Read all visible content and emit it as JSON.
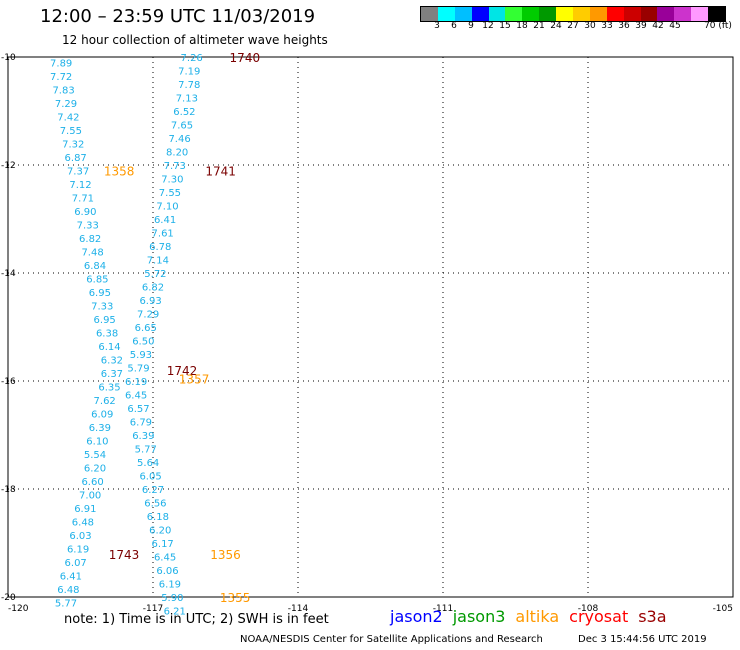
{
  "header": {
    "title": "12:00 – 23:59 UTC 11/03/2019",
    "subtitle": "12 hour collection of altimeter wave heights"
  },
  "colorbar": {
    "colors": [
      "#808080",
      "#00ffff",
      "#00bfff",
      "#0000ff",
      "#00e5e5",
      "#33ff33",
      "#00cc00",
      "#009900",
      "#ffff00",
      "#ffcc00",
      "#ff9900",
      "#ff0000",
      "#cc0000",
      "#990000",
      "#990099",
      "#cc33cc",
      "#ff99ff",
      "#000000"
    ],
    "labels": [
      "3",
      "6",
      "9",
      "12",
      "15",
      "18",
      "21",
      "24",
      "27",
      "30",
      "33",
      "36",
      "39",
      "42",
      "45",
      "70 (ft)"
    ]
  },
  "axes": {
    "lat_ticks": [
      "-10",
      "-12",
      "-14",
      "-16",
      "-18",
      "-20"
    ],
    "lon_ticks": [
      "-120",
      "-117",
      "-114",
      "-111",
      "-108",
      "-105"
    ],
    "lat_range": [
      -20,
      -10
    ],
    "lon_range": [
      -120,
      -105
    ]
  },
  "tracks": [
    {
      "satellite": "jason2",
      "color": "#1db0e8",
      "points": [
        {
          "lat": -10.1,
          "lon": -118.9,
          "v": "7.89"
        },
        {
          "lat": -10.35,
          "lon": -118.9,
          "v": "7.72"
        },
        {
          "lat": -10.6,
          "lon": -118.85,
          "v": "7.83"
        },
        {
          "lat": -10.85,
          "lon": -118.8,
          "v": "7.29"
        },
        {
          "lat": -11.1,
          "lon": -118.75,
          "v": "7.42"
        },
        {
          "lat": -11.35,
          "lon": -118.7,
          "v": "7.55"
        },
        {
          "lat": -11.6,
          "lon": -118.65,
          "v": "7.32"
        },
        {
          "lat": -11.85,
          "lon": -118.6,
          "v": "6.87"
        },
        {
          "lat": -12.1,
          "lon": -118.55,
          "v": "7.37"
        },
        {
          "lat": -12.35,
          "lon": -118.5,
          "v": "7.12"
        },
        {
          "lat": -12.6,
          "lon": -118.45,
          "v": "7.71"
        },
        {
          "lat": -12.85,
          "lon": -118.4,
          "v": "6.90"
        },
        {
          "lat": -13.1,
          "lon": -118.35,
          "v": "7.33"
        },
        {
          "lat": -13.35,
          "lon": -118.3,
          "v": "6.82"
        },
        {
          "lat": -13.6,
          "lon": -118.25,
          "v": "7.48"
        },
        {
          "lat": -13.85,
          "lon": -118.2,
          "v": "6.84"
        },
        {
          "lat": -14.1,
          "lon": -118.15,
          "v": "6.85"
        },
        {
          "lat": -14.35,
          "lon": -118.1,
          "v": "6.95"
        },
        {
          "lat": -14.6,
          "lon": -118.05,
          "v": "7.33"
        },
        {
          "lat": -14.85,
          "lon": -118.0,
          "v": "6.95"
        },
        {
          "lat": -15.1,
          "lon": -117.95,
          "v": "6.38"
        },
        {
          "lat": -15.35,
          "lon": -117.9,
          "v": "6.14"
        },
        {
          "lat": -15.6,
          "lon": -117.85,
          "v": "6.32"
        },
        {
          "lat": -15.85,
          "lon": -117.85,
          "v": "6.37"
        },
        {
          "lat": -16.1,
          "lon": -117.9,
          "v": "6.35"
        },
        {
          "lat": -16.35,
          "lon": -118.0,
          "v": "7.62"
        },
        {
          "lat": -16.6,
          "lon": -118.05,
          "v": "6.09"
        },
        {
          "lat": -16.85,
          "lon": -118.1,
          "v": "6.39"
        },
        {
          "lat": -17.1,
          "lon": -118.15,
          "v": "6.10"
        },
        {
          "lat": -17.35,
          "lon": -118.2,
          "v": "5.54"
        },
        {
          "lat": -17.6,
          "lon": -118.2,
          "v": "6.20"
        },
        {
          "lat": -17.85,
          "lon": -118.25,
          "v": "6.60"
        },
        {
          "lat": -18.1,
          "lon": -118.3,
          "v": "7.00"
        },
        {
          "lat": -18.35,
          "lon": -118.4,
          "v": "6.91"
        },
        {
          "lat": -18.6,
          "lon": -118.45,
          "v": "6.48"
        },
        {
          "lat": -18.85,
          "lon": -118.5,
          "v": "6.03"
        },
        {
          "lat": -19.1,
          "lon": -118.55,
          "v": "6.19"
        },
        {
          "lat": -19.35,
          "lon": -118.6,
          "v": "6.07"
        },
        {
          "lat": -19.6,
          "lon": -118.7,
          "v": "6.41"
        },
        {
          "lat": -19.85,
          "lon": -118.75,
          "v": "6.48"
        },
        {
          "lat": -20.1,
          "lon": -118.8,
          "v": "5.77"
        }
      ]
    },
    {
      "satellite": "jason2",
      "color": "#1db0e8",
      "points": [
        {
          "lat": -10.0,
          "lon": -116.2,
          "v": "7.26"
        },
        {
          "lat": -10.25,
          "lon": -116.25,
          "v": "7.19"
        },
        {
          "lat": -10.5,
          "lon": -116.25,
          "v": "7.78"
        },
        {
          "lat": -10.75,
          "lon": -116.3,
          "v": "7.13"
        },
        {
          "lat": -11.0,
          "lon": -116.35,
          "v": "6.52"
        },
        {
          "lat": -11.25,
          "lon": -116.4,
          "v": "7.65"
        },
        {
          "lat": -11.5,
          "lon": -116.45,
          "v": "7.46"
        },
        {
          "lat": -11.75,
          "lon": -116.5,
          "v": "8.20"
        },
        {
          "lat": -12.0,
          "lon": -116.55,
          "v": "7.73"
        },
        {
          "lat": -12.25,
          "lon": -116.6,
          "v": "7.30"
        },
        {
          "lat": -12.5,
          "lon": -116.65,
          "v": "7.55"
        },
        {
          "lat": -12.75,
          "lon": -116.7,
          "v": "7.10"
        },
        {
          "lat": -13.0,
          "lon": -116.75,
          "v": "6.41"
        },
        {
          "lat": -13.25,
          "lon": -116.8,
          "v": "7.61"
        },
        {
          "lat": -13.5,
          "lon": -116.85,
          "v": "6.78"
        },
        {
          "lat": -13.75,
          "lon": -116.9,
          "v": "7.14"
        },
        {
          "lat": -14.0,
          "lon": -116.95,
          "v": "5.72"
        },
        {
          "lat": -14.25,
          "lon": -117.0,
          "v": "6.82"
        },
        {
          "lat": -14.5,
          "lon": -117.05,
          "v": "6.93"
        },
        {
          "lat": -14.75,
          "lon": -117.1,
          "v": "7.29"
        },
        {
          "lat": -15.0,
          "lon": -117.15,
          "v": "6.65"
        },
        {
          "lat": -15.25,
          "lon": -117.2,
          "v": "6.50"
        },
        {
          "lat": -15.5,
          "lon": -117.25,
          "v": "5.93"
        },
        {
          "lat": -15.75,
          "lon": -117.3,
          "v": "5.79"
        },
        {
          "lat": -16.0,
          "lon": -117.35,
          "v": "6.19"
        },
        {
          "lat": -16.25,
          "lon": -117.35,
          "v": "6.45"
        },
        {
          "lat": -16.5,
          "lon": -117.3,
          "v": "6.57"
        },
        {
          "lat": -16.75,
          "lon": -117.25,
          "v": "6.79"
        },
        {
          "lat": -17.0,
          "lon": -117.2,
          "v": "6.39"
        },
        {
          "lat": -17.25,
          "lon": -117.15,
          "v": "5.77"
        },
        {
          "lat": -17.5,
          "lon": -117.1,
          "v": "5.64"
        },
        {
          "lat": -17.75,
          "lon": -117.05,
          "v": "6.05"
        },
        {
          "lat": -18.0,
          "lon": -117.0,
          "v": "6.27"
        },
        {
          "lat": -18.25,
          "lon": -116.95,
          "v": "6.56"
        },
        {
          "lat": -18.5,
          "lon": -116.9,
          "v": "6.18"
        },
        {
          "lat": -18.75,
          "lon": -116.85,
          "v": "6.20"
        },
        {
          "lat": -19.0,
          "lon": -116.8,
          "v": "6.17"
        },
        {
          "lat": -19.25,
          "lon": -116.75,
          "v": "6.45"
        },
        {
          "lat": -19.5,
          "lon": -116.7,
          "v": "6.06"
        },
        {
          "lat": -19.75,
          "lon": -116.65,
          "v": "6.19"
        },
        {
          "lat": -20.0,
          "lon": -116.6,
          "v": "5.90"
        },
        {
          "lat": -20.25,
          "lon": -116.55,
          "v": "6.21"
        }
      ]
    }
  ],
  "pass_labels": [
    {
      "text": "1740",
      "lat": -10.0,
      "lon": -115.1,
      "color": "#7a0000"
    },
    {
      "text": "1741",
      "lat": -12.1,
      "lon": -115.6,
      "color": "#7a0000"
    },
    {
      "text": "1358",
      "lat": -12.1,
      "lon": -117.7,
      "color": "#ff9900"
    },
    {
      "text": "1742",
      "lat": -15.8,
      "lon": -116.4,
      "color": "#7a0000"
    },
    {
      "text": "1357",
      "lat": -15.95,
      "lon": -116.15,
      "color": "#ff9900"
    },
    {
      "text": "1743",
      "lat": -19.2,
      "lon": -117.6,
      "color": "#7a0000"
    },
    {
      "text": "1356",
      "lat": -19.2,
      "lon": -115.5,
      "color": "#ff9900"
    },
    {
      "text": "1355",
      "lat": -20.0,
      "lon": -115.3,
      "color": "#ff9900"
    }
  ],
  "footer": {
    "note": "note:  1) Time is in UTC;  2) SWH is in feet",
    "legend": [
      {
        "name": "jason2",
        "color": "#0000ff"
      },
      {
        "name": "jason3",
        "color": "#009900"
      },
      {
        "name": "altika",
        "color": "#ff9900"
      },
      {
        "name": "cryosat",
        "color": "#ff0000"
      },
      {
        "name": "s3a",
        "color": "#990000"
      }
    ],
    "credit": "NOAA/NESDIS Center for Satellite Applications and Research",
    "timestamp": "Dec  3 15:44:56 UTC 2019"
  }
}
